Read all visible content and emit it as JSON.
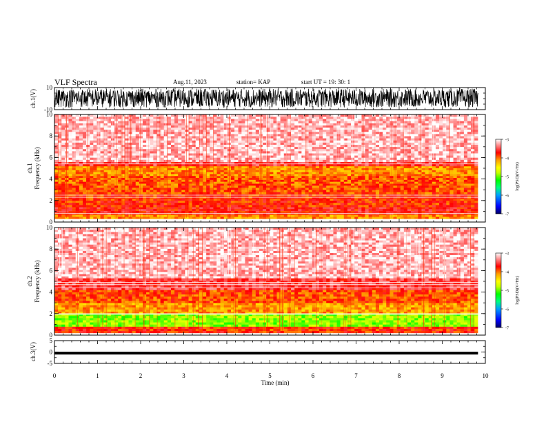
{
  "header": {
    "title": "VLF Spectra",
    "date": "Aug.11, 2023",
    "station": "station= KAP",
    "start": "start  UT  =   19: 30: 1"
  },
  "chart_data": [
    {
      "type": "line",
      "panel": "ch1-waveform",
      "ylabel": "ch.1(V)",
      "ylim": [
        -10,
        10
      ],
      "yticks": [
        "-10",
        "10"
      ],
      "xlim": [
        0,
        10
      ],
      "x_data_end": 9.83,
      "description_of_values": "dense broadband waveform filling roughly -8 to +9 V",
      "value_range": [
        -8,
        9
      ],
      "color": "#000000"
    },
    {
      "type": "heatmap",
      "panel": "ch1-spectrogram",
      "ylabel": [
        "ch.1",
        "Frequency  (kHz)"
      ],
      "ylim": [
        0,
        10
      ],
      "yticks": [
        "0",
        "2",
        "4",
        "6",
        "8",
        "10"
      ],
      "xlim": [
        0,
        10
      ],
      "x_data_end": 9.83,
      "bands": [
        {
          "f0": 0.3,
          "f1": 0.7,
          "level": -4.1
        },
        {
          "f0": 0.7,
          "f1": 1.4,
          "level": -3.7
        },
        {
          "f0": 1.4,
          "f1": 2.6,
          "level": -3.8
        },
        {
          "f0": 2.6,
          "f1": 3.4,
          "level": -3.9
        },
        {
          "f0": 3.4,
          "f1": 4.3,
          "level": -3.95
        },
        {
          "f0": 4.3,
          "f1": 5.2,
          "level": -4.1
        },
        {
          "f0": 5.2,
          "f1": 5.6,
          "level": -3.6
        },
        {
          "f0": 5.6,
          "f1": 10.0,
          "level": -3.2
        }
      ],
      "lines_khz": [
        0.8,
        2.3,
        2.5,
        5.4
      ]
    },
    {
      "type": "heatmap",
      "panel": "ch2-spectrogram",
      "ylabel": [
        "ch.2",
        "Frequency  (kHz)"
      ],
      "ylim": [
        0,
        10
      ],
      "yticks": [
        "0",
        "2",
        "4",
        "6",
        "8",
        "10"
      ],
      "xlim": [
        0,
        10
      ],
      "x_data_end": 9.83,
      "bands": [
        {
          "f0": 0.2,
          "f1": 0.8,
          "level": -3.8
        },
        {
          "f0": 0.8,
          "f1": 2.0,
          "level": -4.9
        },
        {
          "f0": 2.0,
          "f1": 3.0,
          "level": -4.15
        },
        {
          "f0": 3.0,
          "f1": 4.2,
          "level": -3.9
        },
        {
          "f0": 4.2,
          "f1": 5.3,
          "level": -3.55
        },
        {
          "f0": 5.3,
          "f1": 10.0,
          "level": -3.2
        }
      ],
      "lines_khz": [
        1.9,
        2.0,
        4.4,
        4.7,
        4.9,
        5.4
      ]
    },
    {
      "type": "line",
      "panel": "ch3-waveform",
      "ylabel": "ch.3(V)",
      "ylim": [
        -5,
        5
      ],
      "yticks": [
        "-5",
        "0",
        "5"
      ],
      "xlim": [
        0,
        10
      ],
      "x_data_end": 9.83,
      "value_range": [
        -1.1,
        0.1
      ],
      "color": "#000000",
      "xlabel": "Time  (min)",
      "xticks": [
        "0",
        "1",
        "2",
        "3",
        "4",
        "5",
        "6",
        "7",
        "8",
        "9",
        "10"
      ]
    }
  ],
  "colorbar": {
    "label": "log(PSD)(V²/Hz)",
    "range": [
      -7,
      -3
    ],
    "ticks": [
      "-3",
      "-4",
      "-5",
      "-6",
      "-7"
    ],
    "stops": [
      "#000066",
      "#0000ff",
      "#00a0ff",
      "#00ff80",
      "#00ff00",
      "#c8ff00",
      "#ffff00",
      "#ffa000",
      "#ff0000",
      "#ffffff"
    ]
  }
}
